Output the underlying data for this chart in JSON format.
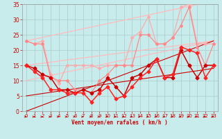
{
  "background_color": "#c8ecec",
  "grid_color": "#b0d0d0",
  "xlabel": "Vent moyen/en rafales ( km/h )",
  "xlim": [
    -0.5,
    23.5
  ],
  "ylim": [
    0,
    35
  ],
  "yticks": [
    0,
    5,
    10,
    15,
    20,
    25,
    30,
    35
  ],
  "xticks": [
    0,
    1,
    2,
    3,
    4,
    5,
    6,
    7,
    8,
    9,
    10,
    11,
    12,
    13,
    14,
    15,
    16,
    17,
    18,
    19,
    20,
    21,
    22,
    23
  ],
  "y_rafales_upper": [
    23,
    22,
    23,
    12,
    9,
    15,
    15,
    15,
    15,
    14,
    15,
    15,
    15,
    24,
    26,
    31,
    22,
    22,
    24,
    34,
    35,
    22,
    22,
    22
  ],
  "y_rafales_lower": [
    23,
    22,
    22,
    11,
    10,
    10,
    7,
    7,
    6,
    10,
    12,
    15,
    15,
    15,
    25,
    25,
    22,
    22,
    24,
    28,
    34,
    21,
    15,
    22
  ],
  "y_vent_upper": [
    15,
    14,
    12,
    11,
    7,
    7,
    6,
    7,
    6,
    7,
    11,
    8,
    5,
    11,
    12,
    15,
    17,
    11,
    11,
    20,
    15,
    11,
    15,
    15
  ],
  "y_vent_lower": [
    15,
    13,
    11,
    7,
    7,
    6,
    6,
    6,
    3,
    6,
    8,
    4,
    5,
    8,
    11,
    13,
    17,
    11,
    12,
    21,
    20,
    19,
    11,
    15
  ],
  "color_rafales_upper": "#ffaaaa",
  "color_rafales_lower": "#ff8888",
  "color_vent_upper": "#cc0000",
  "color_vent_lower": "#ff2222",
  "trend_lines_light": [
    [
      0,
      23,
      23,
      36
    ],
    [
      0,
      15,
      23,
      23
    ],
    [
      0,
      10,
      23,
      23
    ]
  ],
  "trend_lines_dark": [
    [
      0,
      0,
      23,
      23
    ],
    [
      0,
      5,
      23,
      14
    ]
  ],
  "arrow_color": "#cc0000",
  "xlabel_color": "#cc0000",
  "tick_color": "#cc0000"
}
